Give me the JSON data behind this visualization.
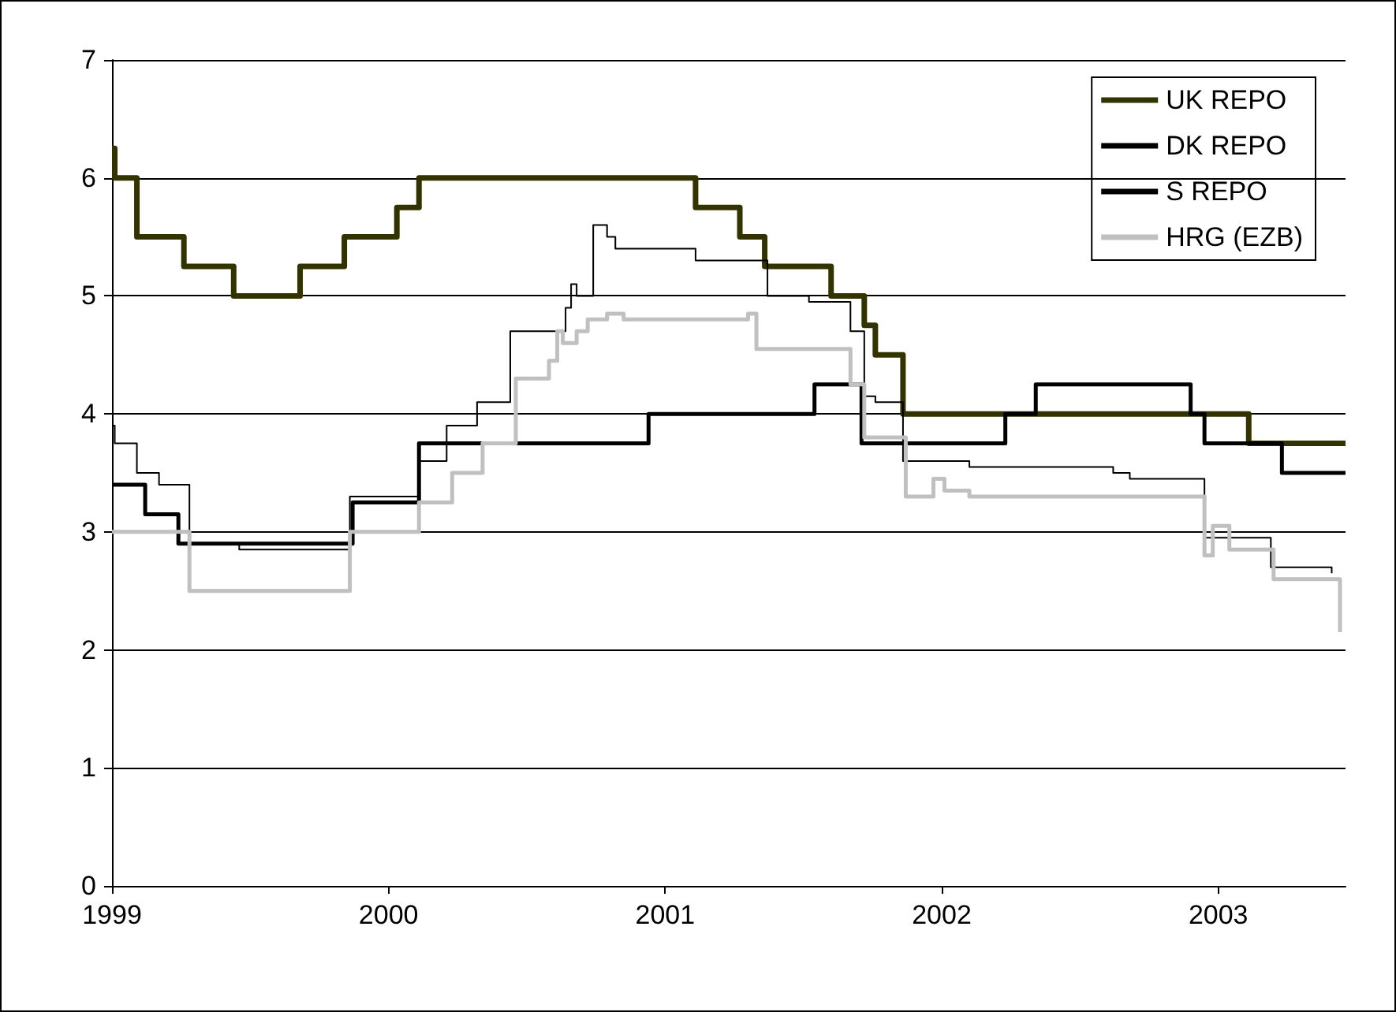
{
  "chart_data": {
    "type": "step",
    "xlim": [
      1999,
      2003.46
    ],
    "xticks": [
      1999,
      2000,
      2001,
      2002,
      2003
    ],
    "ylim": [
      0,
      7
    ],
    "yticks": [
      0,
      1,
      2,
      3,
      4,
      5,
      6,
      7
    ],
    "grid": "y",
    "legend": "top right",
    "marker": "none",
    "series": [
      {
        "name": "UK REPO",
        "color": "#333300",
        "x": [
          1999.0,
          1999.01,
          1999.09,
          1999.26,
          1999.44,
          1999.68,
          1999.84,
          2000.03,
          2000.11,
          2001.11,
          2001.27,
          2001.36,
          2001.6,
          2001.72,
          2001.76,
          2001.86,
          2003.11,
          2003.46
        ],
        "values": [
          6.25,
          6.0,
          5.5,
          5.25,
          5.0,
          5.25,
          5.5,
          5.75,
          6.0,
          5.75,
          5.5,
          5.25,
          5.0,
          4.75,
          4.5,
          4.0,
          3.75,
          3.75
        ]
      },
      {
        "name": "DK REPO",
        "color": "#000000",
        "x": [
          1999.0,
          1999.01,
          1999.09,
          1999.17,
          1999.28,
          1999.46,
          1999.86,
          2000.11,
          2000.21,
          2000.32,
          2000.44,
          2000.64,
          2000.66,
          2000.68,
          2000.74,
          2000.79,
          2000.82,
          2001.11,
          2001.37,
          2001.52,
          2001.67,
          2001.72,
          2001.76,
          2001.86,
          2002.1,
          2002.62,
          2002.68,
          2002.95,
          2003.19,
          2003.41
        ],
        "values": [
          3.9,
          3.75,
          3.5,
          3.4,
          2.9,
          2.85,
          3.3,
          3.6,
          3.9,
          4.1,
          4.7,
          4.9,
          5.1,
          5.0,
          5.6,
          5.5,
          5.4,
          5.3,
          5.0,
          4.95,
          4.7,
          4.15,
          4.1,
          3.6,
          3.55,
          3.5,
          3.45,
          2.95,
          2.7,
          2.65
        ]
      },
      {
        "name": "S REPO",
        "color": "#000000",
        "x": [
          1999.0,
          1999.12,
          1999.24,
          1999.87,
          2000.11,
          2000.94,
          2001.54,
          2001.71,
          2002.23,
          2002.34,
          2002.9,
          2002.95,
          2003.23,
          2003.46
        ],
        "values": [
          3.4,
          3.15,
          2.9,
          3.25,
          3.75,
          4.0,
          4.25,
          3.75,
          4.0,
          4.25,
          4.0,
          3.75,
          3.5,
          3.5
        ]
      },
      {
        "name": "HRG (EZB)",
        "color": "#c0c0c0",
        "x": [
          1999.0,
          1999.28,
          1999.86,
          2000.11,
          2000.23,
          2000.34,
          2000.46,
          2000.58,
          2000.61,
          2000.63,
          2000.68,
          2000.72,
          2000.79,
          2000.85,
          2001.3,
          2001.33,
          2001.67,
          2001.72,
          2001.87,
          2001.97,
          2002.01,
          2002.1,
          2002.95,
          2002.98,
          2003.04,
          2003.2,
          2003.44
        ],
        "values": [
          3.0,
          2.5,
          3.0,
          3.25,
          3.5,
          3.75,
          4.3,
          4.45,
          4.7,
          4.6,
          4.7,
          4.8,
          4.85,
          4.8,
          4.85,
          4.55,
          4.25,
          3.8,
          3.3,
          3.45,
          3.35,
          3.3,
          2.8,
          3.05,
          2.85,
          2.6,
          2.15
        ]
      }
    ]
  }
}
